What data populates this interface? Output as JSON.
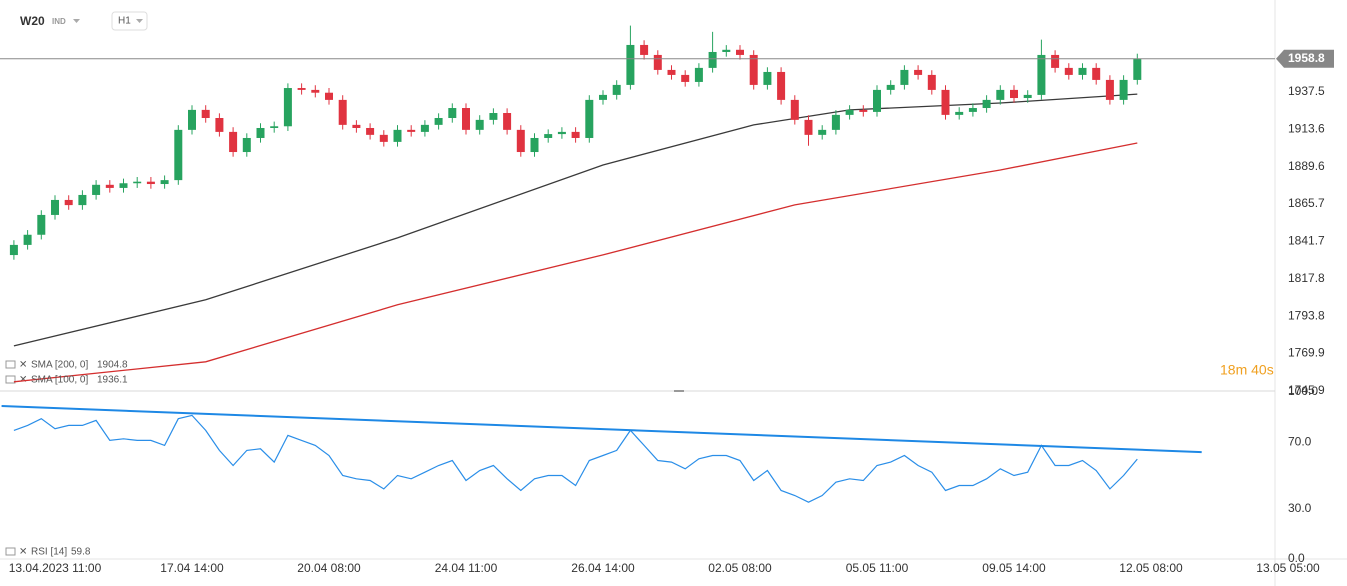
{
  "chart_data": [
    {
      "type": "candlestick",
      "symbol": "W20",
      "market": "IND",
      "interval": "H1",
      "categories": [
        null,
        null,
        null,
        "13.04.2023 11:00",
        null,
        null,
        null,
        null,
        null,
        null,
        null,
        null,
        null,
        "17.04 14:00",
        null,
        null,
        null,
        null,
        null,
        null,
        null,
        null,
        null,
        "20.04 08:00",
        null,
        null,
        null,
        null,
        null,
        null,
        null,
        null,
        null,
        "24.04 11:00",
        null,
        null,
        null,
        null,
        null,
        null,
        null,
        null,
        null,
        "26.04 14:00",
        null,
        null,
        null,
        null,
        null,
        null,
        null,
        null,
        null,
        "02.05 08:00",
        null,
        null,
        null,
        null,
        null,
        null,
        null,
        null,
        null,
        "05.05 11:00",
        null,
        null,
        null,
        null,
        null,
        null,
        null,
        null,
        null,
        "09.05 14:00",
        null,
        null,
        null,
        null,
        null,
        null,
        null,
        null,
        null,
        "12.05 08:00",
        null,
        null,
        null,
        null,
        null,
        null,
        null,
        null,
        null,
        "13.05 05:00"
      ],
      "open": [
        1833,
        1839.5,
        1846,
        1858.7,
        1868.3,
        1865,
        1871.5,
        1878,
        1876,
        1879,
        1880,
        1878.5,
        1881,
        1913.2,
        1926,
        1920.8,
        1911.9,
        1899,
        1908,
        1914.4,
        1915.5,
        1940,
        1938.8,
        1937,
        1932.4,
        1916.4,
        1914.4,
        1910,
        1905.5,
        1913.2,
        1911.9,
        1916.4,
        1920.8,
        1927.2,
        1913.2,
        1919.6,
        1924,
        1913.2,
        1899,
        1908,
        1910.5,
        1911.9,
        1908,
        1932.4,
        1935.6,
        1942,
        1967.6,
        1961.2,
        1951.6,
        1948.4,
        1943.9,
        1952.9,
        1963.1,
        1964.5,
        1961.2,
        1942,
        1950.3,
        1932.4,
        1919.6,
        1910,
        1913.2,
        1922.8,
        1926,
        1924.7,
        1938.8,
        1942,
        1951.6,
        1948.4,
        1938.8,
        1922.8,
        1924.7,
        1927.2,
        1932.4,
        1938.8,
        1933.6,
        1935.6,
        1961.2,
        1952.9,
        1948.4,
        1952.9,
        1945.2,
        1932.4,
        1945.2,
        null,
        null,
        null,
        null,
        null,
        null,
        null,
        null,
        null,
        null,
        null
      ],
      "high": [
        1842.5,
        1849,
        1861.7,
        1871.3,
        1871.3,
        1874.5,
        1881,
        1881,
        1882,
        1883,
        1883,
        1884,
        1916.2,
        1929,
        1929,
        1923.8,
        1914.9,
        1911,
        1917.4,
        1918.5,
        1943,
        1943,
        1941.8,
        1940,
        1935.4,
        1919.4,
        1917.4,
        1913,
        1916.2,
        1916.2,
        1919.4,
        1923.8,
        1930.2,
        1930.2,
        1922.6,
        1927,
        1927,
        1916.2,
        1911,
        1913.5,
        1914.9,
        1914.9,
        1935.4,
        1938.6,
        1945,
        1980,
        1970.6,
        1964.2,
        1954.6,
        1951.4,
        1955.9,
        1976,
        1967.5,
        1967.5,
        1964.2,
        1953.3,
        1953.3,
        1935.4,
        1922.6,
        1916.2,
        1925.8,
        1929,
        1929,
        1941.8,
        1945,
        1954.6,
        1954.6,
        1951.4,
        1941.8,
        1927.7,
        1930.2,
        1935.4,
        1941.8,
        1941.8,
        1938.6,
        1971,
        1964.2,
        1955.9,
        1955.9,
        1955.9,
        1948.2,
        1948.2,
        1962,
        null,
        null,
        null,
        null,
        null,
        null,
        null,
        null,
        null,
        null,
        null
      ],
      "low": [
        1830,
        1836.5,
        1843,
        1855.7,
        1862,
        1862,
        1868.5,
        1873,
        1873,
        1876,
        1875.5,
        1875.5,
        1878,
        1910.2,
        1917.8,
        1908.9,
        1896,
        1896,
        1905,
        1911.4,
        1912.5,
        1935.8,
        1934,
        1929.4,
        1913.4,
        1911.4,
        1907,
        1902.5,
        1902.5,
        1908.9,
        1908.9,
        1913.4,
        1917.8,
        1910.2,
        1910.2,
        1916.6,
        1910.2,
        1896,
        1896,
        1905,
        1907.5,
        1905,
        1905,
        1929.4,
        1932.6,
        1939,
        1958.2,
        1948.6,
        1945.4,
        1940.9,
        1940.9,
        1949.9,
        1960.1,
        1958.2,
        1939,
        1939,
        1929.4,
        1916.6,
        1903,
        1907,
        1910.2,
        1919.8,
        1921.7,
        1921.7,
        1935.8,
        1939,
        1945.4,
        1935.8,
        1919.8,
        1919.8,
        1921.7,
        1924.2,
        1929.4,
        1930.6,
        1930.6,
        1932.6,
        1949.9,
        1945.4,
        1945.4,
        1942.2,
        1929.4,
        1929.4,
        1942.2,
        null,
        null,
        null,
        null,
        null,
        null,
        null,
        null,
        null,
        null,
        null
      ],
      "close": [
        1839.5,
        1846,
        1858.7,
        1868.3,
        1865,
        1871.5,
        1878,
        1876,
        1879,
        1880,
        1878.5,
        1881,
        1913.2,
        1926,
        1920.8,
        1911.9,
        1899,
        1908,
        1914.4,
        1915.5,
        1940,
        1938.8,
        1937,
        1932.4,
        1916.4,
        1914.4,
        1910,
        1905.5,
        1913.2,
        1911.9,
        1916.4,
        1920.8,
        1927.2,
        1913.2,
        1919.6,
        1924,
        1913.2,
        1899,
        1908,
        1910.5,
        1911.9,
        1908,
        1932.4,
        1935.6,
        1942,
        1967.6,
        1961.2,
        1951.6,
        1948.4,
        1943.9,
        1952.9,
        1963.1,
        1964.5,
        1961.2,
        1942,
        1950.3,
        1932.4,
        1919.6,
        1910,
        1913.2,
        1922.8,
        1926,
        1924.7,
        1938.8,
        1942,
        1951.6,
        1948.4,
        1938.8,
        1922.8,
        1924.7,
        1927.2,
        1932.4,
        1938.8,
        1933.6,
        1935.6,
        1961.2,
        1952.9,
        1948.4,
        1952.9,
        1945.2,
        1932.4,
        1945.2,
        1958.8,
        null,
        null,
        null,
        null,
        null,
        null,
        null,
        null,
        null,
        null,
        null
      ],
      "up_color": "#27a35f",
      "down_color": "#e03340",
      "ylim": [
        1745.9,
        1996.4
      ],
      "yticks": [
        1937.5,
        1913.6,
        1889.6,
        1865.7,
        1841.7,
        1817.8,
        1793.8,
        1769.9,
        1745.9
      ],
      "series": [
        {
          "name": "SMA [200, 0]",
          "color": "#d42e2e",
          "x": [
            0,
            14,
            28,
            43,
            57,
            72,
            82
          ],
          "values": [
            1751.8,
            1764.6,
            1801.1,
            1833.1,
            1865.1,
            1887.5,
            1904.8
          ]
        },
        {
          "name": "SMA [100, 0]",
          "color": "#3a3a3a",
          "x": [
            0,
            14,
            28,
            43,
            54,
            61,
            72,
            82
          ],
          "values": [
            1774.8,
            1804.3,
            1844,
            1890.7,
            1916.4,
            1926,
            1930.4,
            1936.1
          ]
        }
      ],
      "countdown": "18m 40s"
    },
    {
      "type": "line",
      "name": "RSI [14]",
      "color": "#2a8ee8",
      "values": [
        77,
        80,
        84,
        78,
        80,
        80,
        83,
        71,
        72,
        71,
        71,
        68,
        84,
        86,
        77,
        65,
        56,
        65,
        66,
        58,
        74,
        71,
        68,
        62,
        50,
        48,
        47,
        42,
        50,
        48,
        52,
        56,
        59,
        47,
        53,
        56,
        48,
        41,
        48,
        50,
        50,
        44,
        59,
        62,
        65,
        77,
        68,
        59,
        58,
        54,
        60,
        62,
        62,
        59,
        47,
        53,
        41,
        38,
        34,
        38,
        46,
        48,
        47,
        56,
        58,
        62,
        56,
        52,
        41,
        44,
        44,
        48,
        54,
        50,
        52,
        68,
        56,
        56,
        59,
        53,
        42,
        50,
        59.8,
        null,
        null,
        null,
        null,
        null,
        null,
        null,
        null,
        null,
        null,
        null
      ],
      "ylim": [
        0,
        100
      ],
      "yticks": [
        {
          "value": 100,
          "label": "100.0"
        },
        {
          "value": 70,
          "label": "70.0"
        },
        {
          "value": 30,
          "label": "30.0"
        },
        {
          "value": 0,
          "label": "0.0"
        }
      ],
      "trendline": {
        "color": "#1e88e5",
        "x": [
          -0.9,
          86.7
        ],
        "values": [
          91.6,
          64
        ]
      }
    }
  ]
}
